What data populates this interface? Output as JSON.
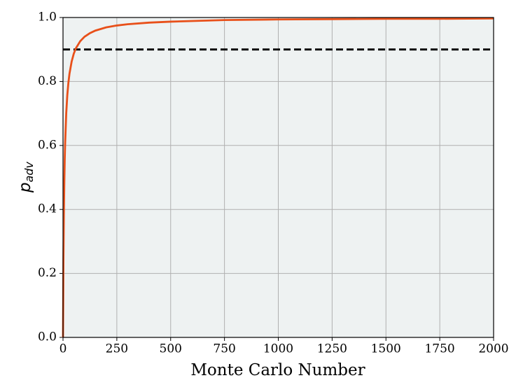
{
  "chart_data": {
    "type": "line",
    "x_label": "Monte Carlo Number",
    "y_label": {
      "base": "p",
      "subscript": "adv"
    },
    "x": [
      0,
      2,
      4,
      6,
      8,
      10,
      15,
      20,
      25,
      30,
      40,
      50,
      60,
      80,
      100,
      125,
      150,
      200,
      250,
      300,
      400,
      500,
      750,
      1000,
      1250,
      1500,
      1750,
      2000
    ],
    "values": [
      0,
      0.238,
      0.385,
      0.484,
      0.556,
      0.61,
      0.701,
      0.758,
      0.796,
      0.824,
      0.862,
      0.887,
      0.904,
      0.926,
      0.94,
      0.951,
      0.959,
      0.969,
      0.975,
      0.979,
      0.984,
      0.987,
      0.992,
      0.994,
      0.995,
      0.996,
      0.996,
      0.997
    ],
    "color": "#e8501a",
    "reference_line": {
      "value": 0.9,
      "color": "#000000",
      "style": "dashed"
    },
    "xlim": [
      0,
      2000
    ],
    "xticks": [
      0,
      250,
      500,
      750,
      1000,
      1250,
      1500,
      1750,
      2000
    ],
    "ylim": [
      0,
      1
    ],
    "yticks": [
      {
        "value": 0,
        "label": "0.0"
      },
      0.2,
      0.4,
      0.6,
      0.8,
      {
        "value": 1,
        "label": "1.0"
      }
    ],
    "grid": true,
    "background": "#eef2f2"
  }
}
